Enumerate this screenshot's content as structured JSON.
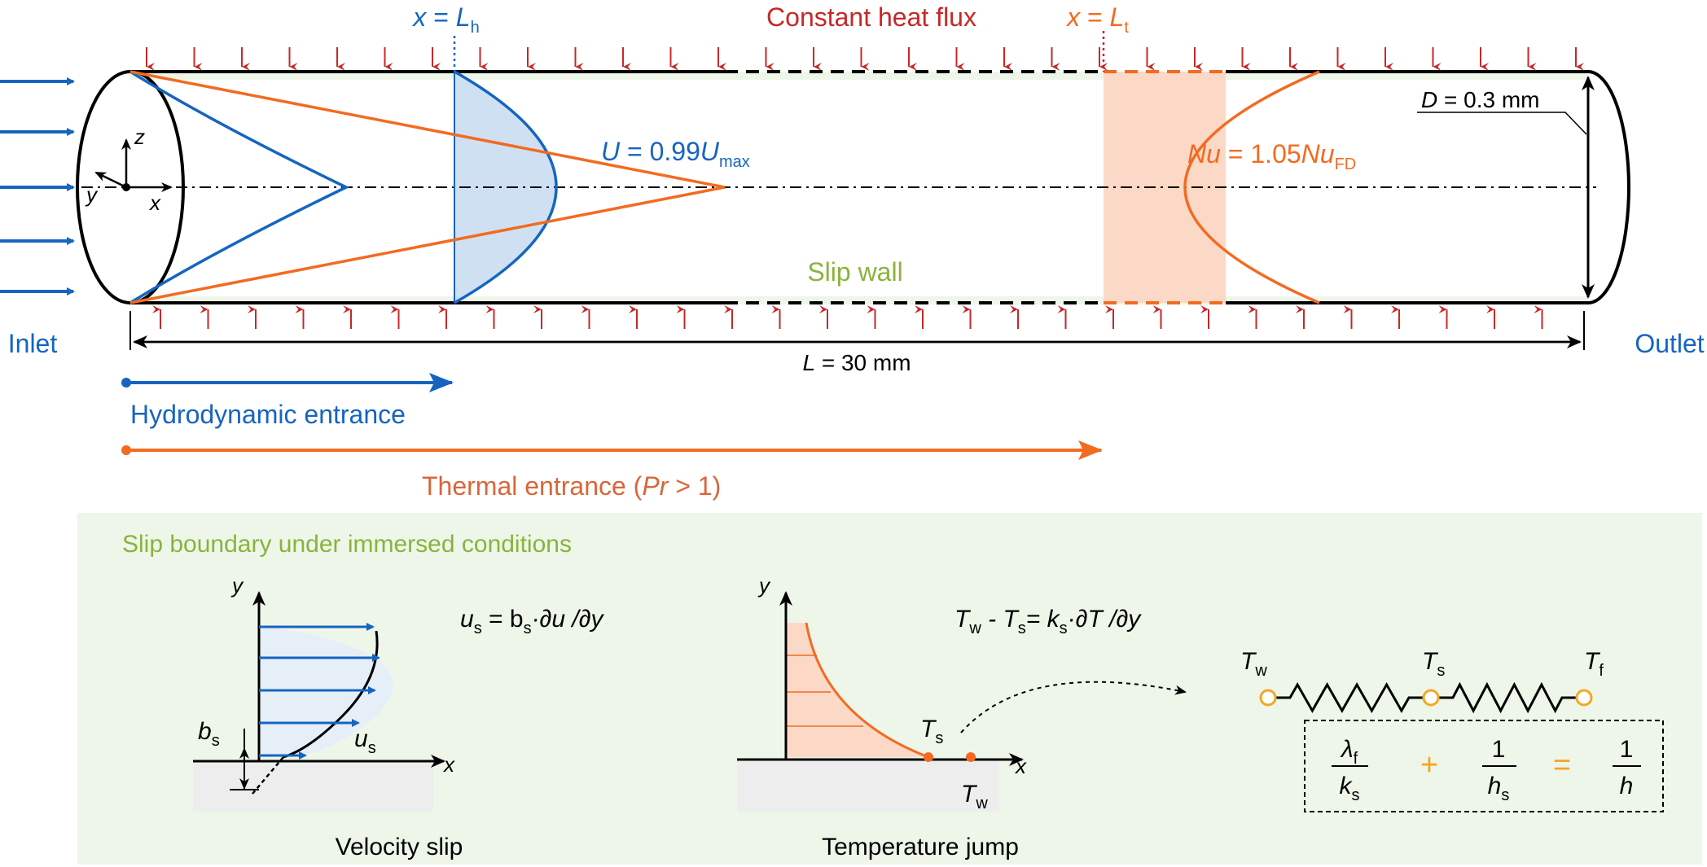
{
  "colors": {
    "blue": "#1565c0",
    "orange": "#f26b21",
    "red": "#c62828",
    "green": "#8ab33c",
    "panel": "#eef6ea",
    "blue_fill": "#cfe0f3",
    "orange_fill": "#fbd9c6",
    "ground": "#ededed"
  },
  "top": {
    "heat_flux": "Constant heat flux",
    "xLh": {
      "lhs": "x",
      "eq": " = ",
      "var": "L",
      "sub": "h"
    },
    "xLt": {
      "lhs": "x",
      "eq": " = ",
      "var": "L",
      "sub": "t"
    },
    "velocity_label": {
      "var": "U",
      "mid": " = 0.99",
      "var2": "U",
      "sub": "max"
    },
    "nusselt_label": {
      "var": "Nu",
      "mid": " = 1.05",
      "var2": "Nu",
      "sub": "FD"
    },
    "diameter": {
      "var": "D",
      "rest": " = 0.3 mm"
    },
    "length": {
      "var": "L",
      "rest": " = 30 mm"
    },
    "slip_wall": "Slip wall",
    "inlet": "Inlet",
    "outlet": "Outlet",
    "axes": {
      "z": "z",
      "y": "y",
      "x": "x"
    },
    "hydro": "Hydrodynamic entrance",
    "thermal": {
      "text": "Thermal entrance  (",
      "var": "Pr",
      "rest": " > 1)"
    }
  },
  "panel": {
    "title": "Slip boundary under immersed conditions",
    "velocity": {
      "caption": "Velocity slip",
      "axis_y": "y",
      "axis_x": "x",
      "equation": {
        "a": "u",
        "a_sub": "s",
        "b": " = b",
        "b_sub": "s",
        "c": "·∂u /∂y"
      },
      "us": {
        "var": "u",
        "sub": "s"
      },
      "bs": {
        "var": "b",
        "sub": "s"
      }
    },
    "temperature": {
      "caption": "Temperature jump",
      "axis_y": "y",
      "axis_x": "x",
      "equation": {
        "a": "T",
        "a_sub": "w",
        "b": " - T",
        "b_sub": "s",
        "c": "= k",
        "c_sub": "s",
        "d": "·∂T /∂y"
      },
      "Ts": {
        "var": "T",
        "sub": "s"
      },
      "Tw": {
        "var": "T",
        "sub": "w"
      }
    },
    "resistor": {
      "nodes": [
        {
          "var": "T",
          "sub": "w"
        },
        {
          "var": "T",
          "sub": "s"
        },
        {
          "var": "T",
          "sub": "f"
        }
      ],
      "formula": {
        "num1": "λ",
        "num1_sub": "f",
        "den1": "k",
        "den1_sub": "s",
        "plus": "+",
        "num2": "1",
        "den2": "h",
        "den2_sub": "s",
        "equals": "=",
        "num3": "1",
        "den3": "h"
      }
    }
  }
}
